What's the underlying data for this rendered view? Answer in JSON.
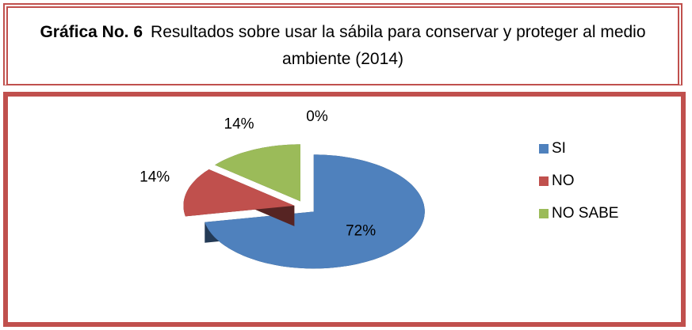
{
  "chart_data": {
    "type": "pie",
    "title_label": "Gráfica No. 6",
    "title": "Resultados sobre usar la sábila  para  conservar  y proteger al  medio ambiente (2014)",
    "categories": [
      "SI",
      "NO",
      "NO SABE",
      null
    ],
    "values": [
      72,
      14,
      14,
      0
    ],
    "value_labels": [
      "72%",
      "14%",
      "14%",
      "0%"
    ],
    "colors": [
      "#4f81bd",
      "#c0504d",
      "#9bbb59",
      "#8064a2"
    ],
    "legend": "right"
  }
}
